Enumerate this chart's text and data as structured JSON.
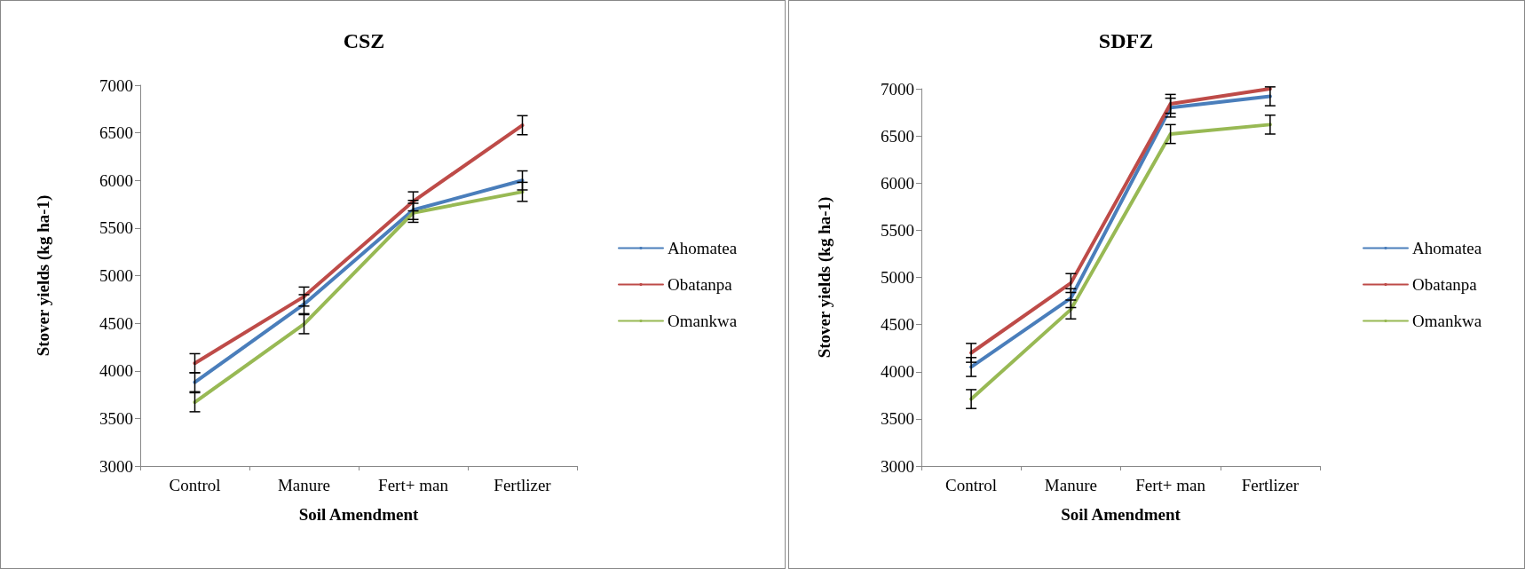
{
  "chart_data": [
    {
      "type": "line",
      "title": "CSZ",
      "xlabel": "Soil Amendment",
      "ylabel": "Stover yields (kg ha-1)",
      "categories": [
        "Control",
        "Manure",
        "Fert+ man",
        "Fertlizer"
      ],
      "ylim": [
        3000,
        7000
      ],
      "yticks": [
        3000,
        3500,
        4000,
        4500,
        5000,
        5500,
        6000,
        6500,
        7000
      ],
      "grid": false,
      "legend": "right",
      "marker": "none",
      "line_style": "solid",
      "series": [
        {
          "name": "Ahomatea",
          "color": "#4a7ebb",
          "values": [
            3880,
            4700,
            5690,
            6000
          ],
          "errors": [
            100,
            100,
            100,
            100
          ]
        },
        {
          "name": "Obatanpa",
          "color": "#be4b48",
          "values": [
            4080,
            4780,
            5780,
            6580
          ],
          "errors": [
            100,
            100,
            100,
            100
          ]
        },
        {
          "name": "Omankwa",
          "color": "#98b954",
          "values": [
            3670,
            4490,
            5660,
            5880
          ],
          "errors": [
            100,
            100,
            100,
            100
          ]
        }
      ]
    },
    {
      "type": "line",
      "title": "SDFZ",
      "xlabel": "Soil Amendment",
      "ylabel": "Stover yields (kg ha-1)",
      "categories": [
        "Control",
        "Manure",
        "Fert+ man",
        "Fertlizer"
      ],
      "ylim": [
        3000,
        7000
      ],
      "yticks": [
        3000,
        3500,
        4000,
        4500,
        5000,
        5500,
        6000,
        6500,
        7000
      ],
      "grid": false,
      "legend": "right",
      "marker": "none",
      "line_style": "solid",
      "series": [
        {
          "name": "Ahomatea",
          "color": "#4a7ebb",
          "values": [
            4050,
            4780,
            6800,
            6920
          ],
          "errors": [
            100,
            100,
            100,
            100
          ]
        },
        {
          "name": "Obatanpa",
          "color": "#be4b48",
          "values": [
            4200,
            4940,
            6840,
            7000
          ],
          "errors": [
            100,
            100,
            100,
            null
          ]
        },
        {
          "name": "Omankwa",
          "color": "#98b954",
          "values": [
            3710,
            4660,
            6520,
            6620
          ],
          "errors": [
            100,
            100,
            100,
            100
          ]
        }
      ]
    }
  ]
}
